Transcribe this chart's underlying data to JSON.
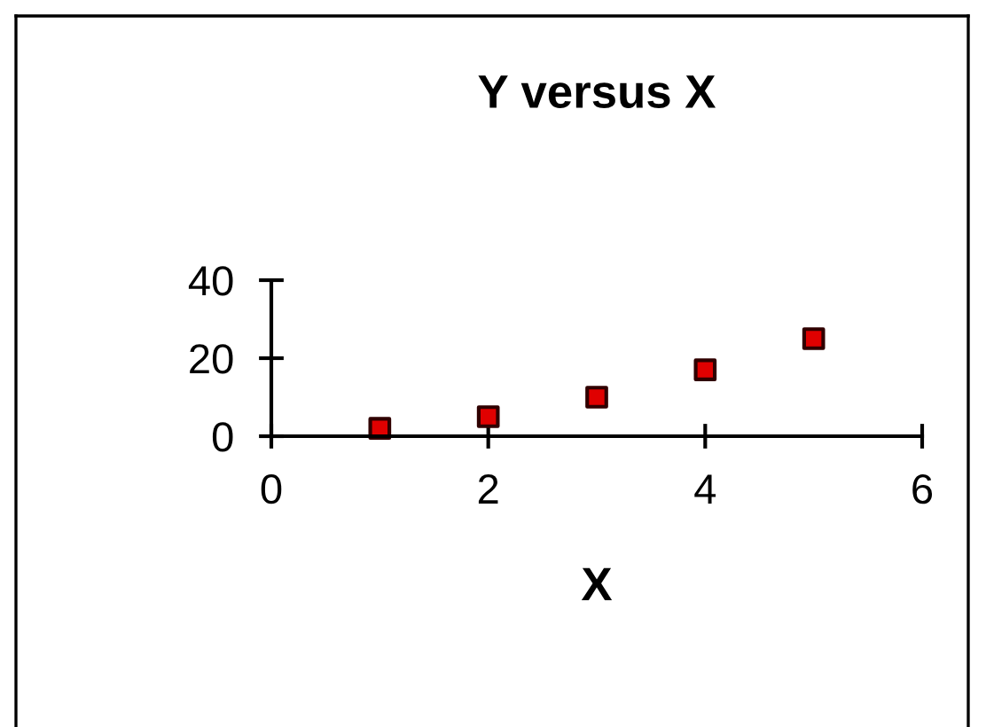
{
  "chart_data": {
    "type": "scatter",
    "title": "Y versus X",
    "xlabel": "X",
    "x": [
      1,
      2,
      3,
      4,
      5
    ],
    "series": [
      {
        "color": "#e00000",
        "values": [
          2,
          5,
          10,
          17,
          25
        ]
      }
    ],
    "xlim": [
      0,
      6
    ],
    "xticks": [
      0,
      2,
      4,
      6
    ],
    "ylim": [
      0,
      40
    ],
    "yticks": [
      0,
      20,
      40
    ],
    "marker": "square",
    "grid": false,
    "legend": false
  }
}
